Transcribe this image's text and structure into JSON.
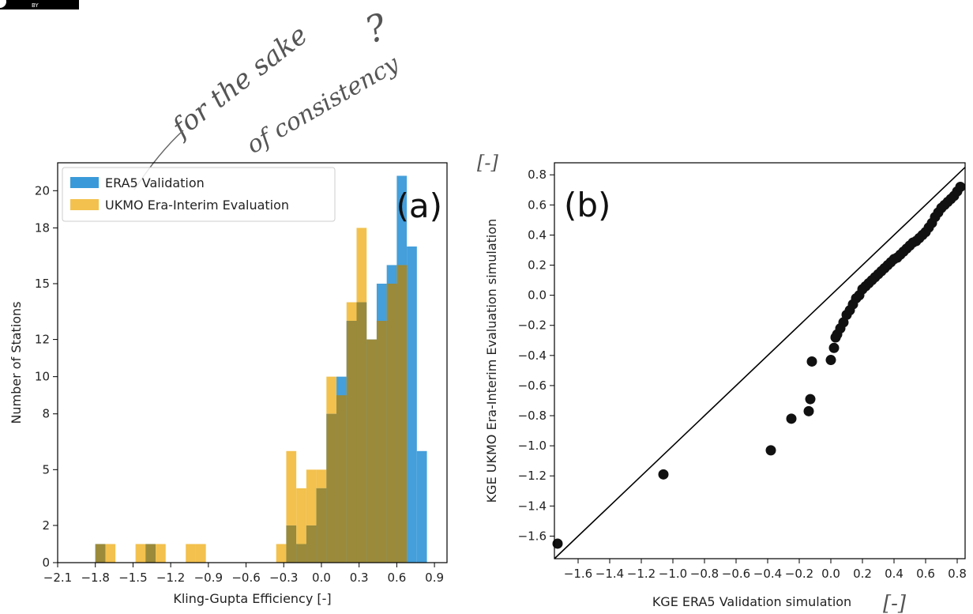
{
  "badge": {
    "text": "BY"
  },
  "annotations": {
    "note_line1": "for the sake",
    "note_line2": "of consistency",
    "note_q": "?",
    "unit_marker": "[-]"
  },
  "colors": {
    "era5": "#3a9ad9",
    "ukmo": "#f2c14e",
    "overlap": "#9a8a3a",
    "points": "#111111",
    "axes": "#000000"
  },
  "chart_data": [
    {
      "type": "bar",
      "panel_label": "(a)",
      "xlabel": "Kling-Gupta Efficiency [-]",
      "ylabel": "Number of Stations",
      "xlim": [
        -2.1,
        1.0
      ],
      "ylim": [
        0,
        21.5
      ],
      "xticks": [
        -2.1,
        -1.8,
        -1.5,
        -1.2,
        -0.9,
        -0.6,
        -0.3,
        0.0,
        0.3,
        0.6,
        0.9
      ],
      "xtick_labels": [
        "−2.1",
        "−1.8",
        "−1.5",
        "−1.2",
        "−0.9",
        "−0.6",
        "−0.3",
        "0.0",
        "0.3",
        "0.6",
        "0.9"
      ],
      "yticks": [
        0,
        2,
        5,
        8,
        10,
        12,
        15,
        18,
        20
      ],
      "ytick_labels": [
        "0",
        "2",
        "5",
        "8",
        "10",
        "12",
        "15",
        "18",
        "20"
      ],
      "bin_width": 0.08,
      "bin_start": -1.8,
      "legend_position": "upper-left",
      "series": [
        {
          "name": "ERA5 Validation",
          "values": [
            1,
            0,
            0,
            0,
            0,
            1,
            0,
            0,
            0,
            0,
            0,
            0,
            0,
            0,
            0,
            0,
            0,
            0,
            0,
            2,
            1,
            2,
            4,
            8,
            10,
            13,
            14,
            12,
            15,
            16,
            20.8,
            17,
            6,
            0,
            0
          ]
        },
        {
          "name": "UKMO Era-Interim Evaluation",
          "values": [
            1,
            1,
            0,
            0,
            1,
            1,
            1,
            0,
            0,
            1,
            1,
            0,
            0,
            0,
            0,
            0,
            0,
            0,
            1,
            6,
            4,
            5,
            5,
            10,
            9,
            14,
            18,
            12,
            13,
            15,
            16,
            0,
            0,
            0,
            0
          ]
        }
      ]
    },
    {
      "type": "scatter",
      "panel_label": "(b)",
      "xlabel": "KGE ERA5 Validation simulation",
      "ylabel": "KGE UKMO Era-Interim Evaluation simulation",
      "xlim": [
        -1.75,
        0.85
      ],
      "ylim": [
        -1.75,
        0.88
      ],
      "xticks": [
        -1.6,
        -1.4,
        -1.2,
        -1.0,
        -0.8,
        -0.6,
        -0.4,
        -0.2,
        0.0,
        0.2,
        0.4,
        0.6,
        0.8
      ],
      "xtick_labels": [
        "−1.6",
        "−1.4",
        "−1.2",
        "−1.0",
        "−0.8",
        "−0.6",
        "−0.4",
        "−0.2",
        "0.0",
        "0.2",
        "0.4",
        "0.6",
        "0.8"
      ],
      "yticks": [
        -1.6,
        -1.4,
        -1.2,
        -1.0,
        -0.8,
        -0.6,
        -0.4,
        -0.2,
        0.0,
        0.2,
        0.4,
        0.6,
        0.8
      ],
      "ytick_labels": [
        "−1.6",
        "−1.4",
        "−1.2",
        "−1.0",
        "−0.8",
        "−0.6",
        "−0.4",
        "−0.2",
        "0.0",
        "0.2",
        "0.4",
        "0.6",
        "0.8"
      ],
      "reference_line": "1:1",
      "x": [
        -1.73,
        -1.06,
        -0.38,
        -0.25,
        -0.14,
        -0.13,
        -0.12,
        0.0,
        0.02,
        0.03,
        0.04,
        0.06,
        0.08,
        0.1,
        0.12,
        0.14,
        0.16,
        0.18,
        0.2,
        0.22,
        0.24,
        0.26,
        0.28,
        0.3,
        0.32,
        0.34,
        0.36,
        0.38,
        0.4,
        0.42,
        0.44,
        0.46,
        0.48,
        0.5,
        0.52,
        0.54,
        0.56,
        0.58,
        0.6,
        0.62,
        0.64,
        0.66,
        0.68,
        0.7,
        0.72,
        0.74,
        0.76,
        0.78,
        0.8,
        0.82
      ],
      "y": [
        -1.65,
        -1.19,
        -1.03,
        -0.82,
        -0.77,
        -0.69,
        -0.44,
        -0.43,
        -0.35,
        -0.28,
        -0.26,
        -0.22,
        -0.18,
        -0.13,
        -0.1,
        -0.06,
        -0.02,
        0.0,
        0.04,
        0.06,
        0.08,
        0.1,
        0.12,
        0.14,
        0.16,
        0.18,
        0.2,
        0.22,
        0.24,
        0.25,
        0.27,
        0.29,
        0.31,
        0.33,
        0.35,
        0.36,
        0.38,
        0.4,
        0.42,
        0.45,
        0.48,
        0.52,
        0.55,
        0.58,
        0.6,
        0.62,
        0.64,
        0.66,
        0.69,
        0.72
      ]
    }
  ]
}
